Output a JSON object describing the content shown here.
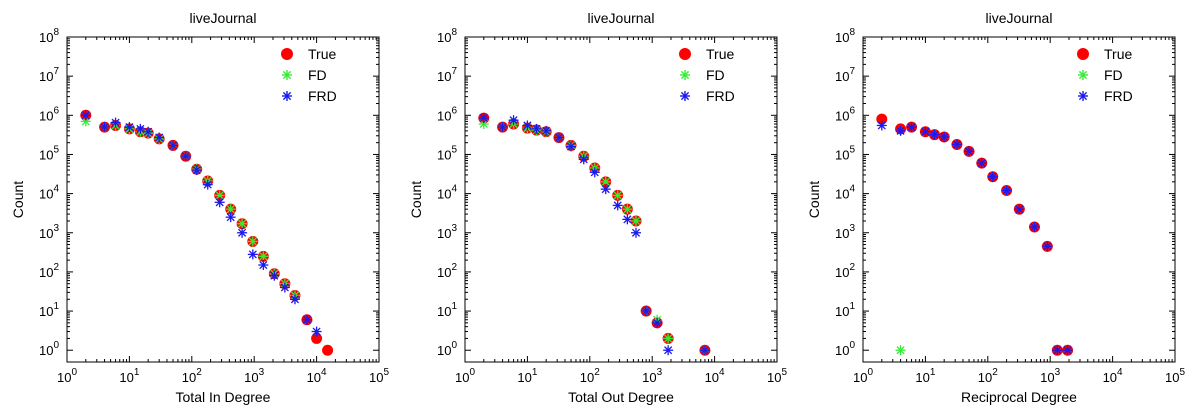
{
  "chart_data": [
    {
      "type": "scatter",
      "title": "liveJournal",
      "xlabel": "Total In Degree",
      "ylabel": "Count",
      "xscale": "log",
      "yscale": "log",
      "xlim": [
        1,
        100000
      ],
      "ylim": [
        0.5,
        100000000
      ],
      "grid": false,
      "legend": "top-right",
      "series": [
        {
          "name": "True",
          "marker": "filled-circle",
          "color": "#ff0000",
          "x": [
            2,
            4,
            6,
            10,
            15,
            20,
            30,
            50,
            80,
            120,
            180,
            280,
            420,
            640,
            950,
            1400,
            2100,
            3100,
            4500,
            7000,
            10000,
            15000
          ],
          "y": [
            1000000,
            500000,
            550000,
            450000,
            380000,
            350000,
            250000,
            170000,
            90000,
            42000,
            21000,
            9000,
            4000,
            1700,
            600,
            250,
            90,
            50,
            25,
            6,
            2,
            1
          ]
        },
        {
          "name": "FD",
          "marker": "asterisk",
          "color": "#33ee33",
          "x": [
            2,
            4,
            6,
            10,
            15,
            20,
            30,
            50,
            80,
            120,
            180,
            280,
            420,
            640,
            950,
            1400,
            2100,
            3100,
            4500
          ],
          "y": [
            700000,
            500000,
            550000,
            450000,
            380000,
            350000,
            250000,
            170000,
            90000,
            42000,
            21000,
            9000,
            4000,
            1700,
            600,
            250,
            90,
            50,
            25
          ]
        },
        {
          "name": "FRD",
          "marker": "asterisk",
          "color": "#1a1aee",
          "x": [
            2,
            4,
            6,
            10,
            15,
            20,
            30,
            50,
            80,
            120,
            180,
            280,
            420,
            640,
            950,
            1400,
            2100,
            3100,
            4500,
            7000,
            10000
          ],
          "y": [
            1000000,
            500000,
            650000,
            500000,
            450000,
            380000,
            270000,
            170000,
            90000,
            40000,
            17000,
            6000,
            2500,
            1000,
            280,
            150,
            80,
            40,
            20,
            6,
            3
          ]
        }
      ]
    },
    {
      "type": "scatter",
      "title": "liveJournal",
      "xlabel": "Total Out Degree",
      "ylabel": "Count",
      "xscale": "log",
      "yscale": "log",
      "xlim": [
        1,
        100000
      ],
      "ylim": [
        0.5,
        100000000
      ],
      "grid": false,
      "legend": "top-right",
      "series": [
        {
          "name": "True",
          "marker": "filled-circle",
          "color": "#ff0000",
          "x": [
            2,
            4,
            6,
            10,
            14,
            20,
            32,
            50,
            80,
            120,
            180,
            280,
            400,
            550,
            800,
            1200,
            1800,
            7000
          ],
          "y": [
            850000,
            500000,
            600000,
            470000,
            420000,
            380000,
            270000,
            170000,
            90000,
            45000,
            20000,
            9000,
            4000,
            2000,
            10,
            5,
            2,
            1
          ]
        },
        {
          "name": "FD",
          "marker": "asterisk",
          "color": "#33ee33",
          "x": [
            2,
            4,
            6,
            10,
            14,
            20,
            32,
            50,
            80,
            120,
            180,
            280,
            400,
            550,
            800,
            1200,
            1800,
            7000
          ],
          "y": [
            600000,
            500000,
            600000,
            470000,
            420000,
            380000,
            270000,
            170000,
            90000,
            45000,
            20000,
            9000,
            4000,
            2000,
            10,
            6,
            2,
            1
          ]
        },
        {
          "name": "FRD",
          "marker": "asterisk",
          "color": "#1a1aee",
          "x": [
            2,
            4,
            6,
            10,
            14,
            20,
            32,
            50,
            80,
            120,
            180,
            280,
            400,
            550,
            800,
            1200,
            1800,
            7000
          ],
          "y": [
            850000,
            500000,
            750000,
            550000,
            450000,
            400000,
            270000,
            160000,
            75000,
            35000,
            13000,
            5000,
            2200,
            1000,
            10,
            5,
            1,
            1
          ]
        }
      ]
    },
    {
      "type": "scatter",
      "title": "liveJournal",
      "xlabel": "Reciprocal Degree",
      "ylabel": "Count",
      "xscale": "log",
      "yscale": "log",
      "xlim": [
        1,
        100000
      ],
      "ylim": [
        0.5,
        100000000
      ],
      "grid": false,
      "legend": "top-right",
      "series": [
        {
          "name": "True",
          "marker": "filled-circle",
          "color": "#ff0000",
          "x": [
            2,
            4,
            6,
            10,
            14,
            20,
            32,
            50,
            80,
            120,
            200,
            320,
            560,
            900,
            1300,
            1900
          ],
          "y": [
            800000,
            450000,
            500000,
            380000,
            320000,
            280000,
            180000,
            120000,
            60000,
            27000,
            12000,
            4000,
            1400,
            450,
            1,
            1
          ]
        },
        {
          "name": "FD",
          "marker": "asterisk",
          "color": "#33ee33",
          "x": [
            4
          ],
          "y": [
            1
          ]
        },
        {
          "name": "FRD",
          "marker": "asterisk",
          "color": "#1a1aee",
          "x": [
            2,
            4,
            6,
            10,
            14,
            20,
            32,
            50,
            80,
            120,
            200,
            320,
            560,
            900,
            1300,
            1900
          ],
          "y": [
            550000,
            400000,
            500000,
            380000,
            320000,
            280000,
            180000,
            120000,
            60000,
            27000,
            12000,
            4000,
            1400,
            450,
            1,
            1
          ]
        }
      ]
    }
  ]
}
